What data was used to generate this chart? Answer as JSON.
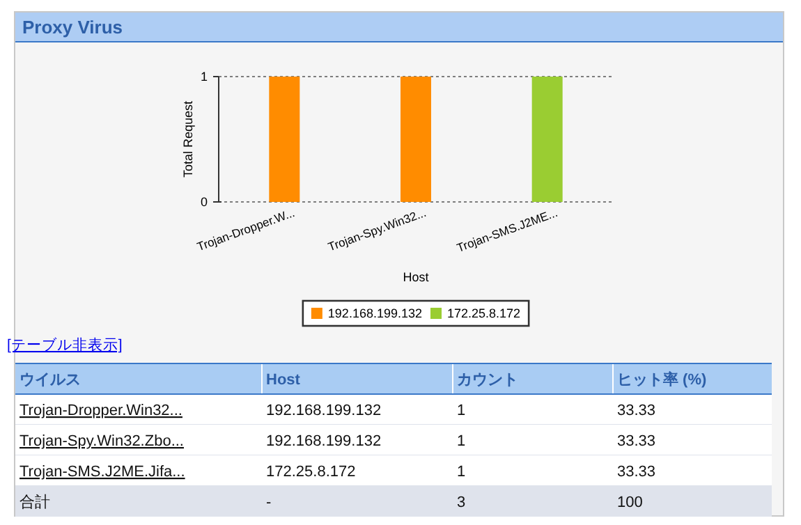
{
  "chart_data": [
    {
      "type": "bar",
      "title": "Proxy Virus",
      "xlabel": "Host",
      "ylabel": "Total Request",
      "categories": [
        "Trojan-Dropper.W...",
        "Trojan-Spy.Win32...",
        "Trojan-SMS.J2ME..."
      ],
      "series": [
        {
          "name": "192.168.199.132",
          "color": "#ff8c00",
          "values": [
            1,
            1,
            null
          ]
        },
        {
          "name": "172.25.8.172",
          "color": "#9acd32",
          "values": [
            null,
            null,
            1
          ]
        }
      ],
      "ylim": [
        0,
        1
      ],
      "yticks": [
        0,
        1
      ],
      "grid": "y",
      "legend": "bottom"
    },
    {
      "type": "other",
      "annotations": [
        "[テーブル非表示]",
        "ウイルス",
        "Host",
        "カウント",
        "ヒット率 (%)",
        "Trojan-Dropper.Win32...",
        "192.168.199.132",
        "1",
        "33.33",
        "Trojan-Spy.Win32.Zbo...",
        "192.168.199.132",
        "1",
        "33.33",
        "Trojan-SMS.J2ME.Jifa...",
        "172.25.8.172",
        "1",
        "33.33",
        "合計",
        "-",
        "3",
        "100"
      ]
    }
  ]
}
